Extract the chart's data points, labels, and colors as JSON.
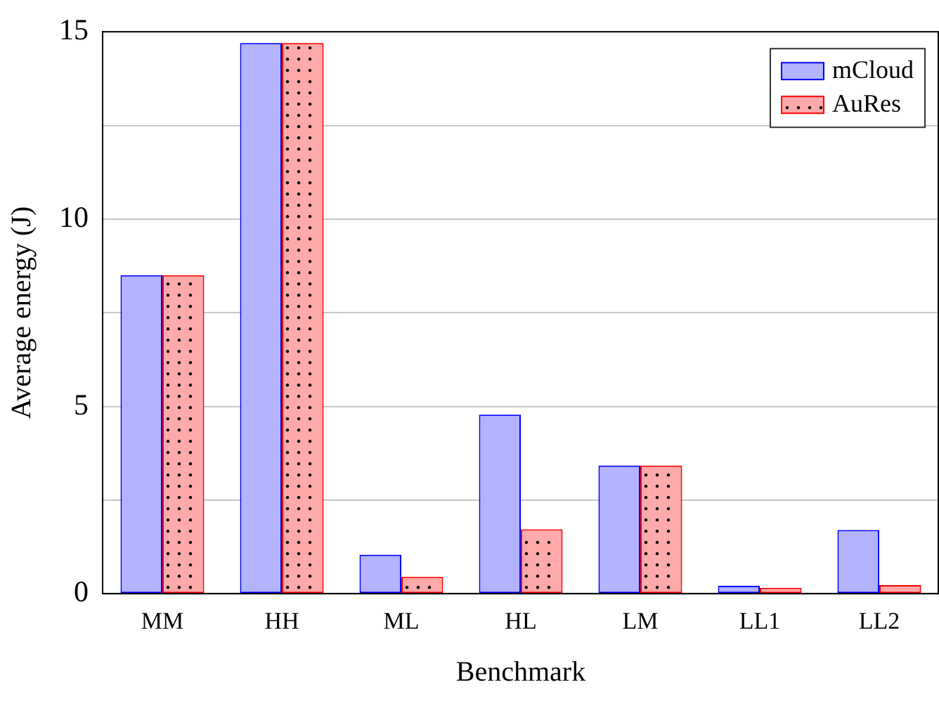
{
  "chart_data": {
    "type": "bar",
    "xlabel": "Benchmark",
    "ylabel": "Average energy (J)",
    "categories": [
      "MM",
      "HH",
      "ML",
      "HL",
      "LM",
      "LL1",
      "LL2"
    ],
    "series": [
      {
        "name": "mCloud",
        "color": "#b3b3ff",
        "values": [
          8.5,
          14.7,
          1.04,
          4.78,
          3.42,
          0.21,
          1.7
        ]
      },
      {
        "name": "AuRes",
        "color": "#ffaaaa",
        "values": [
          8.5,
          14.7,
          0.45,
          1.72,
          3.42,
          0.16,
          0.23
        ]
      }
    ],
    "ylim": [
      0,
      15
    ],
    "yticks": [
      0,
      {
        "value": 2.5,
        "label": null
      },
      5,
      {
        "value": 7.5,
        "label": null
      },
      10,
      {
        "value": 12.5,
        "label": null
      },
      15
    ],
    "grid": "y",
    "legend": "top right"
  }
}
